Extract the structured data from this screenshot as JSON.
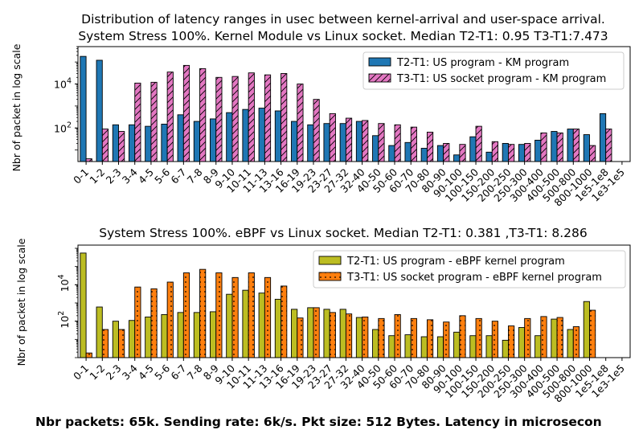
{
  "footer": "Nbr packets: 65k. Sending rate: 6k/s. Pkt size: 512 Bytes. Latency in microsecon",
  "chart_data": [
    {
      "type": "bar",
      "title": "Distribution of latency ranges in usec between kernel-arrival and user-space arrival.",
      "subtitle": "System Stress 100%. Kernel Module vs Linux socket. Median T2-T1: 0.95 T3-T1:7.473",
      "ylabel": "Nbr of packet in log scale",
      "yscale": "log",
      "ylim": [
        3,
        500000
      ],
      "yticks": [
        "10^2",
        "10^4"
      ],
      "legend_position": "top-right",
      "categories": [
        "0-1",
        "1-2",
        "2-3",
        "3-4",
        "4-5",
        "5-6",
        "6-7",
        "7-8",
        "8-9",
        "9-10",
        "10-11",
        "11-13",
        "13-16",
        "16-19",
        "19-23",
        "23-27",
        "27-32",
        "32-40",
        "40-50",
        "50-60",
        "60-70",
        "70-80",
        "80-90",
        "90-100",
        "100-150",
        "150-200",
        "200-250",
        "250-300",
        "300-400",
        "400-500",
        "500-800",
        "800-1000",
        "1e5-1e8",
        "1e3-1e5"
      ],
      "series": [
        {
          "name": "T2-T1: US program - KM program",
          "color": "#1f77b4",
          "hatch": "none",
          "values": [
            180000,
            120000,
            140,
            140,
            120,
            150,
            400,
            200,
            260,
            500,
            700,
            800,
            600,
            200,
            140,
            160,
            160,
            200,
            45,
            16,
            22,
            12,
            16,
            6,
            40,
            8,
            20,
            18,
            28,
            70,
            90,
            50,
            450,
            0
          ]
        },
        {
          "name": "T3-T1: US socket program - KM program",
          "color": "#e377c2",
          "hatch": "diagonal",
          "values": [
            4,
            90,
            70,
            11000,
            12000,
            35000,
            70000,
            50000,
            20000,
            22000,
            32000,
            26000,
            30000,
            10000,
            2000,
            450,
            280,
            220,
            160,
            140,
            110,
            65,
            20,
            18,
            120,
            24,
            18,
            20,
            60,
            60,
            90,
            16,
            90,
            0
          ]
        }
      ]
    },
    {
      "type": "bar",
      "title": "System Stress 100%. eBPF vs Linux socket. Median T2-T1: 0.381 ,T3-T1: 8.286",
      "ylabel": "Nbr of packet in log scale",
      "yscale": "log",
      "ylim": [
        1,
        1500000
      ],
      "yticks": [
        "10^2",
        "10^4"
      ],
      "legend_position": "top-right",
      "categories": [
        "0-1",
        "1-2",
        "2-3",
        "3-4",
        "4-5",
        "5-6",
        "6-7",
        "7-8",
        "8-9",
        "9-10",
        "10-11",
        "11-13",
        "13-16",
        "16-19",
        "19-23",
        "23-27",
        "27-32",
        "32-40",
        "40-50",
        "50-60",
        "60-70",
        "70-80",
        "80-90",
        "90-100",
        "100-150",
        "150-200",
        "200-250",
        "250-300",
        "300-400",
        "400-500",
        "500-800",
        "800-1000",
        "1e5-1e8",
        "1e3-1e5"
      ],
      "series": [
        {
          "name": "T2-T1: US program - eBPF kernel program",
          "color": "#bcbd22",
          "hatch": "none",
          "values": [
            550000,
            600,
            100,
            110,
            170,
            230,
            300,
            300,
            330,
            3000,
            5000,
            3500,
            1600,
            450,
            550,
            450,
            450,
            160,
            35,
            16,
            18,
            14,
            14,
            25,
            16,
            16,
            9,
            45,
            16,
            130,
            35,
            1200,
            0,
            0
          ]
        },
        {
          "name": "T3-T1: US socket program - eBPF kernel program",
          "color": "#ff7f0e",
          "hatch": "dots",
          "values": [
            1.8,
            35,
            35,
            7500,
            6000,
            14000,
            45000,
            70000,
            45000,
            25000,
            45000,
            25000,
            8500,
            150,
            550,
            300,
            250,
            170,
            140,
            230,
            140,
            120,
            90,
            200,
            140,
            100,
            55,
            140,
            180,
            160,
            50,
            400,
            0,
            0
          ]
        }
      ]
    }
  ]
}
